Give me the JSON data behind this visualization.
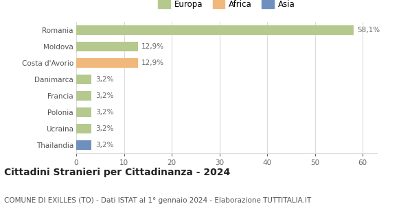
{
  "categories": [
    "Romania",
    "Moldova",
    "Costa d'Avorio",
    "Danimarca",
    "Francia",
    "Polonia",
    "Ucraina",
    "Thailandia"
  ],
  "values": [
    58.1,
    12.9,
    12.9,
    3.2,
    3.2,
    3.2,
    3.2,
    3.2
  ],
  "labels": [
    "58,1%",
    "12,9%",
    "12,9%",
    "3,2%",
    "3,2%",
    "3,2%",
    "3,2%",
    "3,2%"
  ],
  "continent": [
    "Europa",
    "Europa",
    "Africa",
    "Europa",
    "Europa",
    "Europa",
    "Europa",
    "Asia"
  ],
  "colors": {
    "Europa": "#b5c98e",
    "Africa": "#f0b87a",
    "Asia": "#6f8fbf"
  },
  "legend": [
    "Europa",
    "Africa",
    "Asia"
  ],
  "legend_colors": [
    "#b5c98e",
    "#f0b87a",
    "#6f8fbf"
  ],
  "title": "Cittadini Stranieri per Cittadinanza - 2024",
  "subtitle": "COMUNE DI EXILLES (TO) - Dati ISTAT al 1° gennaio 2024 - Elaborazione TUTTITALIA.IT",
  "xlim": [
    0,
    63
  ],
  "xticks": [
    0,
    10,
    20,
    30,
    40,
    50,
    60
  ],
  "background_color": "#ffffff",
  "grid_color": "#d8ddd8",
  "title_fontsize": 10,
  "subtitle_fontsize": 7.5,
  "label_fontsize": 7.5,
  "tick_fontsize": 7.5,
  "bar_height": 0.62
}
